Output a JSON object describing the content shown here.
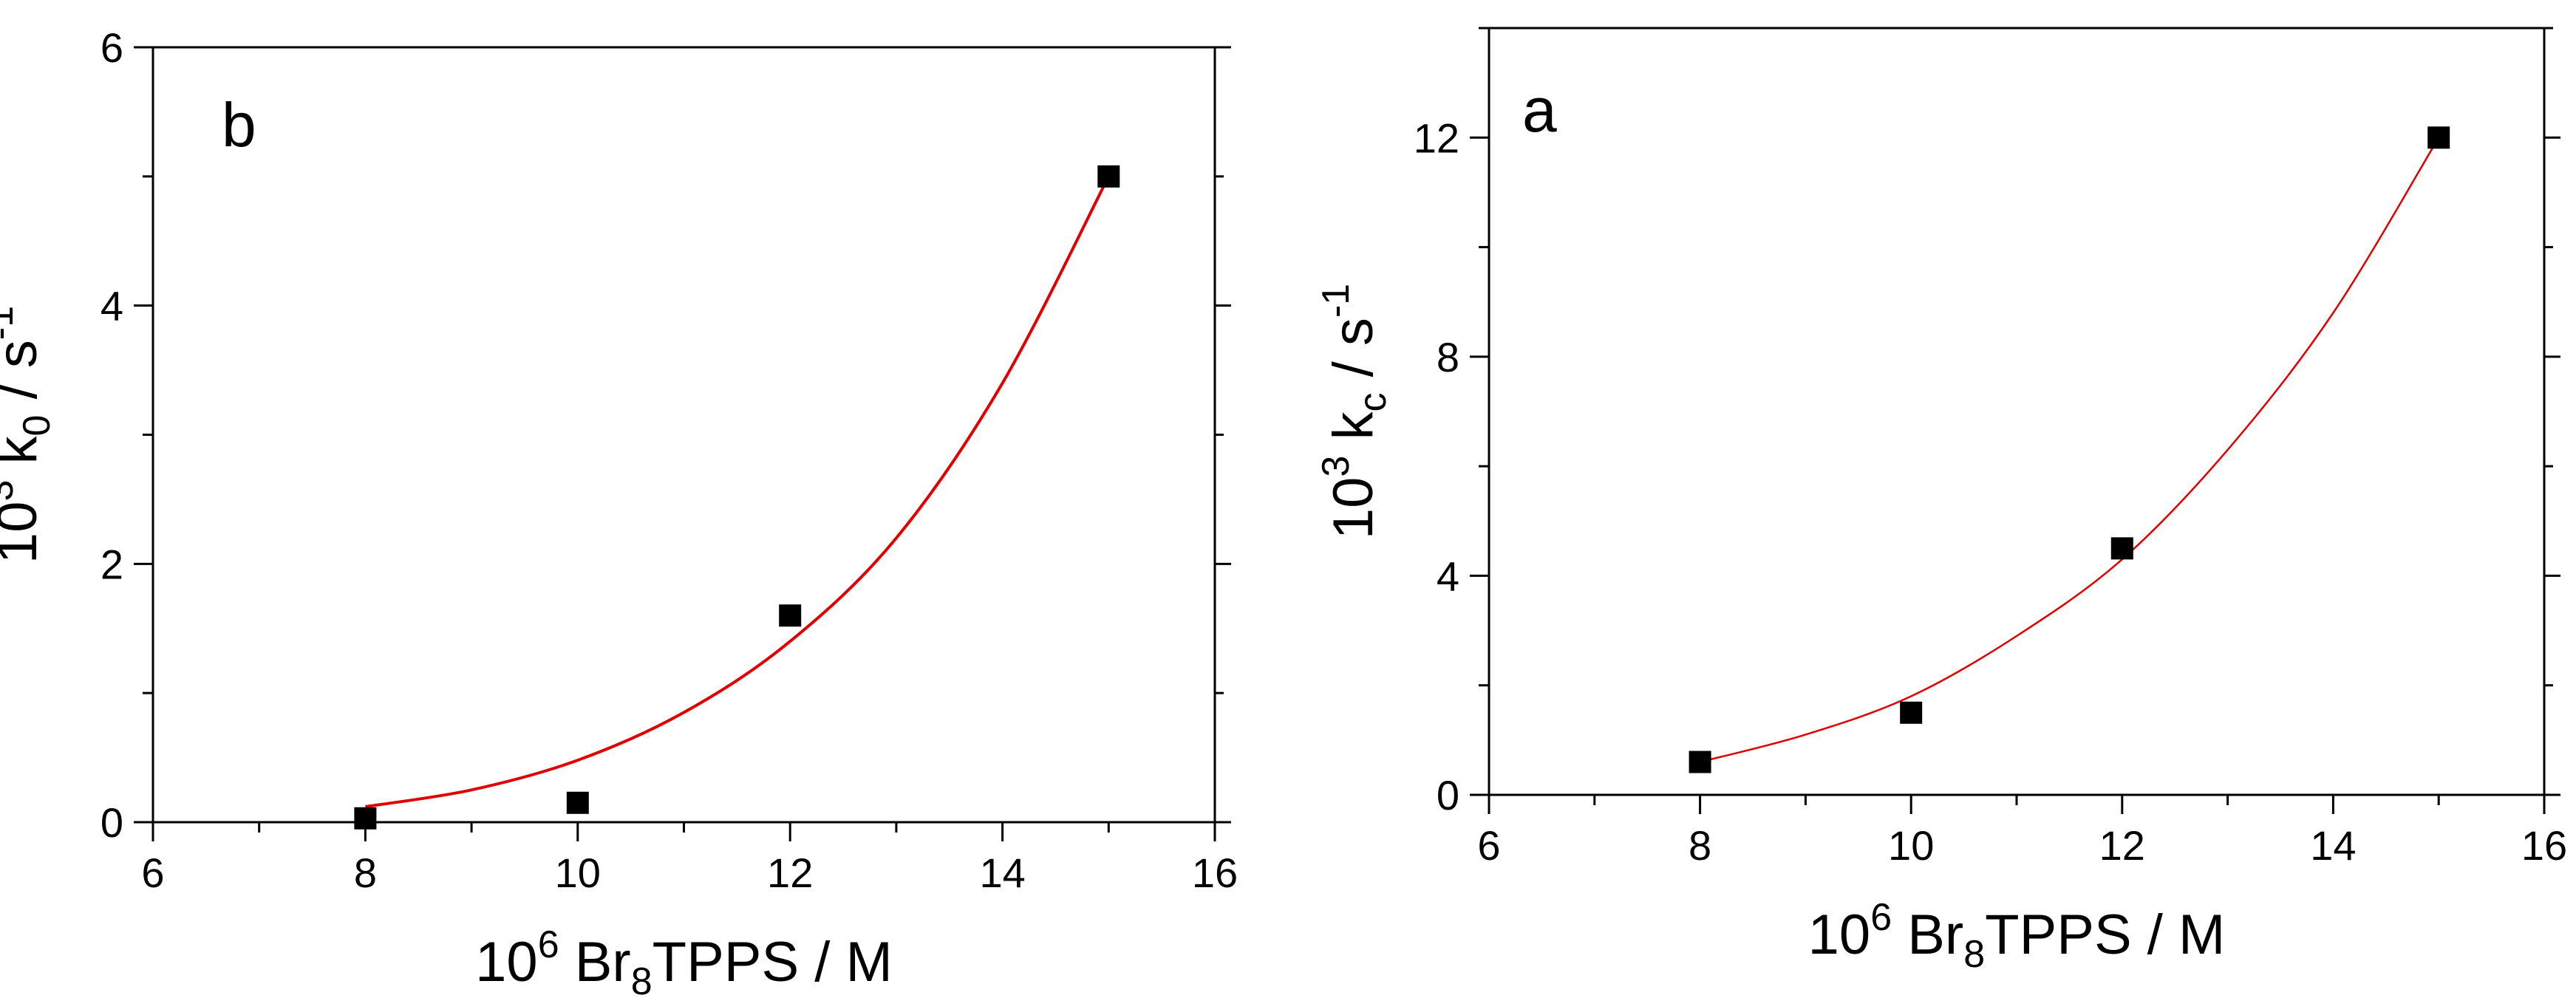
{
  "chart_data": [
    {
      "type": "scatter",
      "panel_label": "b",
      "xlabel": {
        "base": "10",
        "exp": "6",
        "text1": " Br",
        "sub": "8",
        "text2": "TPPS / M"
      },
      "ylabel": {
        "base": "10",
        "exp": "3",
        "text1": " k",
        "sub": "0",
        "text2": " / s",
        "exp2": "-1"
      },
      "xlim": [
        6,
        16
      ],
      "ylim": [
        0,
        6
      ],
      "x_ticks": [
        6,
        8,
        10,
        12,
        14,
        16
      ],
      "y_ticks": [
        0,
        2,
        4,
        6
      ],
      "x_minor_step": 1,
      "y_minor_step": 1,
      "grid": false,
      "series": [
        {
          "kind": "points",
          "marker": "square",
          "color": "#000000",
          "x": [
            8,
            10,
            12,
            15
          ],
          "y": [
            0.03,
            0.15,
            1.6,
            5.0
          ]
        },
        {
          "kind": "fit",
          "color": "#e00000",
          "x": [
            8,
            9,
            10,
            11,
            12,
            13,
            14,
            15
          ],
          "y": [
            0.12,
            0.25,
            0.48,
            0.85,
            1.4,
            2.2,
            3.4,
            5.0
          ]
        }
      ]
    },
    {
      "type": "scatter",
      "panel_label": "a",
      "xlabel": {
        "base": "10",
        "exp": "6",
        "text1": " Br",
        "sub": "8",
        "text2": "TPPS / M"
      },
      "ylabel": {
        "base": "10",
        "exp": "3",
        "text1": " k",
        "sub": "c",
        "text2": " / s",
        "exp2": "-1"
      },
      "xlim": [
        6,
        16
      ],
      "ylim": [
        0,
        14
      ],
      "x_ticks": [
        6,
        8,
        10,
        12,
        14,
        16
      ],
      "y_ticks": [
        0,
        4,
        8,
        12
      ],
      "x_minor_step": 1,
      "y_minor_step": 2,
      "grid": false,
      "series": [
        {
          "kind": "points",
          "marker": "square",
          "color": "#000000",
          "x": [
            8,
            10,
            12,
            15
          ],
          "y": [
            0.6,
            1.5,
            4.5,
            12.0
          ]
        },
        {
          "kind": "fit",
          "color": "#e00000",
          "x": [
            8,
            9,
            10,
            11,
            12,
            13,
            14,
            15
          ],
          "y": [
            0.6,
            1.1,
            1.8,
            2.9,
            4.3,
            6.3,
            8.8,
            12.0
          ]
        }
      ]
    }
  ]
}
